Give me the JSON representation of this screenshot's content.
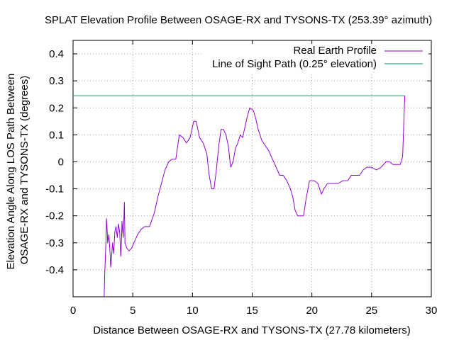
{
  "chart_data": {
    "type": "line",
    "title": "SPLAT Elevation Profile Between OSAGE-RX and TYSONS-TX (253.39° azimuth)",
    "xlabel": "Distance Between OSAGE-RX and TYSONS-TX (27.78 kilometers)",
    "ylabel_line1": "Elevation Angle Along LOS Path Between",
    "ylabel_line2": "OSAGE-RX and TYSONS-TX (degrees)",
    "xlim": [
      0,
      30
    ],
    "ylim": [
      -0.5,
      0.45
    ],
    "x_ticks": [
      0,
      5,
      10,
      15,
      20,
      25,
      30
    ],
    "y_ticks": [
      0.4,
      0.3,
      0.2,
      0.1,
      0,
      -0.1,
      -0.2,
      -0.3,
      -0.4
    ],
    "x_tick_labels": [
      "0",
      "5",
      "10",
      "15",
      "20",
      "25",
      "30"
    ],
    "y_tick_labels": [
      "0.4",
      "0.3",
      "0.2",
      "0.1",
      "0",
      "-0.1",
      "-0.2",
      "-0.3",
      "-0.4"
    ],
    "grid": true,
    "legend_position": "top-right",
    "colors": {
      "profile": "#9400d3",
      "los": "#009e73"
    },
    "series": [
      {
        "name": "Real Earth Profile",
        "color": "#9400d3",
        "points": [
          [
            2.6,
            -0.5
          ],
          [
            2.65,
            -0.42
          ],
          [
            2.75,
            -0.3
          ],
          [
            2.8,
            -0.21
          ],
          [
            2.85,
            -0.25
          ],
          [
            2.9,
            -0.3
          ],
          [
            3.0,
            -0.27
          ],
          [
            3.1,
            -0.34
          ],
          [
            3.15,
            -0.39
          ],
          [
            3.2,
            -0.37
          ],
          [
            3.3,
            -0.3
          ],
          [
            3.4,
            -0.34
          ],
          [
            3.5,
            -0.26
          ],
          [
            3.6,
            -0.24
          ],
          [
            3.7,
            -0.28
          ],
          [
            3.8,
            -0.23
          ],
          [
            3.9,
            -0.26
          ],
          [
            4.0,
            -0.35
          ],
          [
            4.05,
            -0.3
          ],
          [
            4.1,
            -0.22
          ],
          [
            4.2,
            -0.28
          ],
          [
            4.3,
            -0.15
          ],
          [
            4.35,
            -0.3
          ],
          [
            4.5,
            -0.32
          ],
          [
            4.7,
            -0.33
          ],
          [
            4.9,
            -0.32
          ],
          [
            5.1,
            -0.3
          ],
          [
            5.4,
            -0.27
          ],
          [
            5.7,
            -0.25
          ],
          [
            6.0,
            -0.24
          ],
          [
            6.4,
            -0.24
          ],
          [
            6.8,
            -0.19
          ],
          [
            7.1,
            -0.13
          ],
          [
            7.4,
            -0.08
          ],
          [
            7.7,
            -0.03
          ],
          [
            8.0,
            0.0
          ],
          [
            8.3,
            0.01
          ],
          [
            8.6,
            0.01
          ],
          [
            8.9,
            0.1
          ],
          [
            9.2,
            0.09
          ],
          [
            9.5,
            0.07
          ],
          [
            9.8,
            0.09
          ],
          [
            10.1,
            0.15
          ],
          [
            10.3,
            0.15
          ],
          [
            10.6,
            0.09
          ],
          [
            10.9,
            0.07
          ],
          [
            11.2,
            0.03
          ],
          [
            11.4,
            -0.05
          ],
          [
            11.6,
            -0.1
          ],
          [
            11.8,
            -0.1
          ],
          [
            12.0,
            -0.03
          ],
          [
            12.2,
            0.06
          ],
          [
            12.4,
            0.12
          ],
          [
            12.6,
            0.12
          ],
          [
            12.8,
            0.1
          ],
          [
            13.0,
            0.06
          ],
          [
            13.2,
            -0.02
          ],
          [
            13.4,
            0.0
          ],
          [
            13.6,
            0.05
          ],
          [
            13.8,
            0.07
          ],
          [
            14.0,
            0.1
          ],
          [
            14.2,
            0.09
          ],
          [
            14.4,
            0.13
          ],
          [
            14.6,
            0.17
          ],
          [
            14.8,
            0.2
          ],
          [
            15.1,
            0.19
          ],
          [
            15.3,
            0.16
          ],
          [
            15.5,
            0.12
          ],
          [
            15.8,
            0.08
          ],
          [
            16.1,
            0.06
          ],
          [
            16.4,
            0.04
          ],
          [
            16.7,
            0.01
          ],
          [
            17.0,
            -0.02
          ],
          [
            17.3,
            -0.05
          ],
          [
            17.6,
            -0.05
          ],
          [
            17.9,
            -0.07
          ],
          [
            18.2,
            -0.1
          ],
          [
            18.4,
            -0.13
          ],
          [
            18.6,
            -0.18
          ],
          [
            18.8,
            -0.2
          ],
          [
            19.0,
            -0.2
          ],
          [
            19.3,
            -0.2
          ],
          [
            19.5,
            -0.14
          ],
          [
            19.8,
            -0.07
          ],
          [
            20.2,
            -0.07
          ],
          [
            20.5,
            -0.08
          ],
          [
            20.8,
            -0.12
          ],
          [
            21.0,
            -0.1
          ],
          [
            21.3,
            -0.08
          ],
          [
            21.8,
            -0.08
          ],
          [
            22.2,
            -0.08
          ],
          [
            22.6,
            -0.07
          ],
          [
            23.0,
            -0.07
          ],
          [
            23.3,
            -0.05
          ],
          [
            23.7,
            -0.05
          ],
          [
            24.0,
            -0.05
          ],
          [
            24.3,
            -0.03
          ],
          [
            24.6,
            -0.02
          ],
          [
            25.0,
            -0.02
          ],
          [
            25.4,
            -0.03
          ],
          [
            25.8,
            -0.02
          ],
          [
            26.2,
            0.0
          ],
          [
            26.5,
            0.0
          ],
          [
            26.8,
            -0.01
          ],
          [
            27.1,
            -0.01
          ],
          [
            27.4,
            -0.01
          ],
          [
            27.6,
            0.02
          ],
          [
            27.7,
            0.15
          ],
          [
            27.78,
            0.245
          ]
        ]
      },
      {
        "name": "Line of Sight Path (0.25° elevation)",
        "color": "#009e73",
        "points": [
          [
            0.0,
            0.245
          ],
          [
            27.78,
            0.245
          ]
        ]
      }
    ]
  }
}
